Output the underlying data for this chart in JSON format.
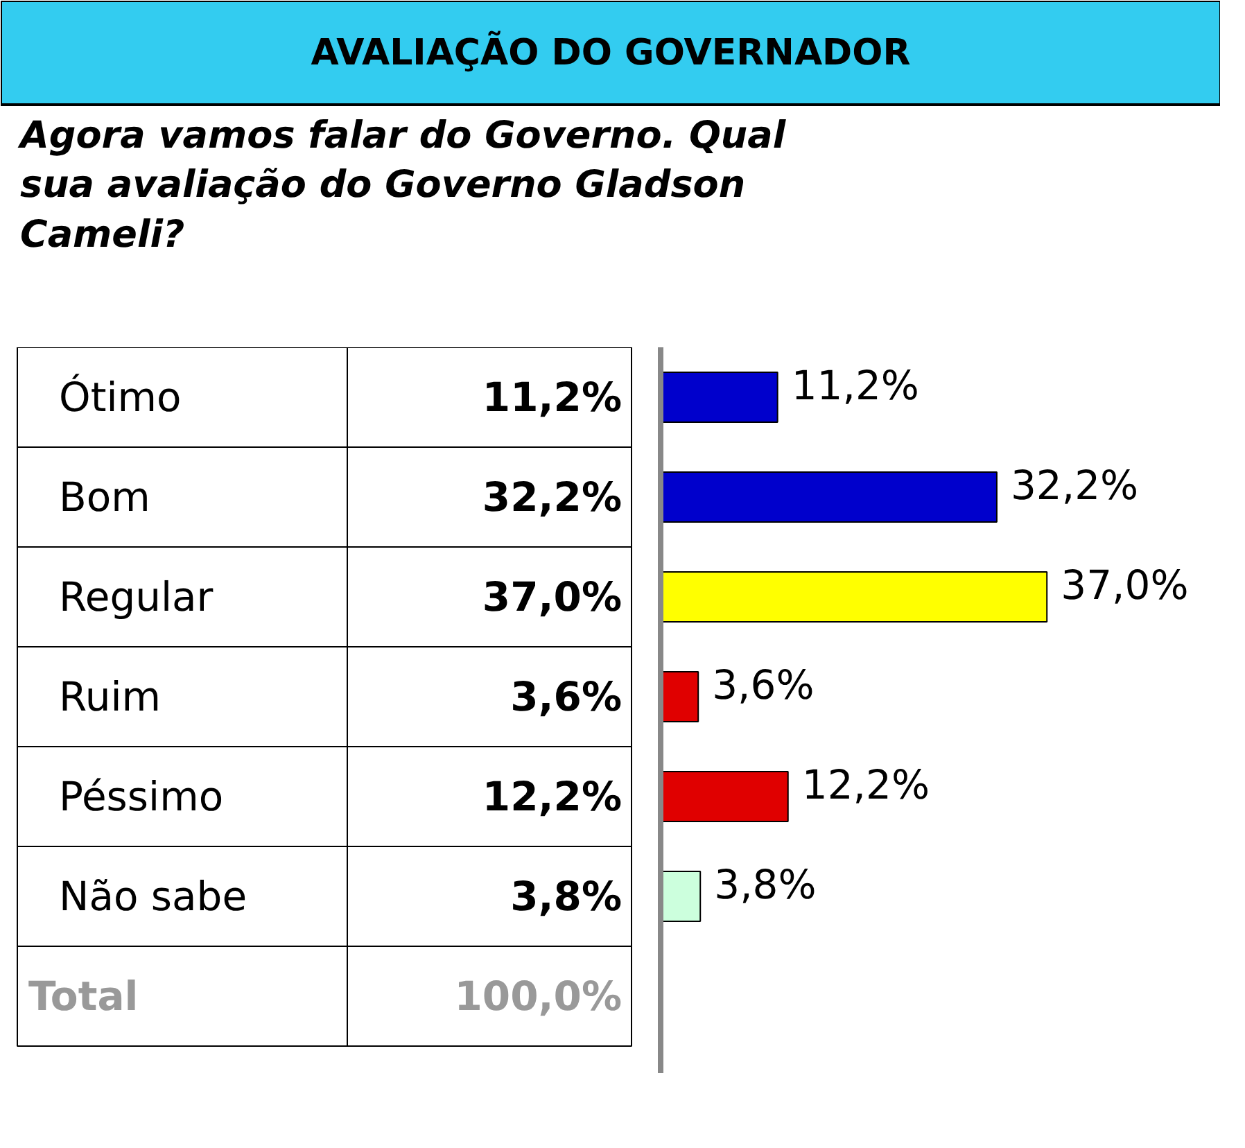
{
  "chart_data": {
    "type": "bar",
    "orientation": "horizontal",
    "title": "AVALIAÇÃO DO GOVERNADOR",
    "subtitle": "Agora vamos falar do Governo. Qual sua avaliação do Governo Gladson Cameli?",
    "categories": [
      "Ótimo",
      "Bom",
      "Regular",
      "Ruim",
      "Péssimo",
      "Não sabe"
    ],
    "values": [
      11.2,
      32.2,
      37.0,
      3.6,
      12.2,
      3.8
    ],
    "value_labels": [
      "11,2%",
      "32,2%",
      "37,0%",
      "3,6%",
      "12,2%",
      "3,8%"
    ],
    "colors": [
      "#0000cc",
      "#0000cc",
      "#ffff00",
      "#e00000",
      "#e00000",
      "#ccffdd"
    ],
    "annotations": [
      "Total",
      "100,0%"
    ]
  }
}
